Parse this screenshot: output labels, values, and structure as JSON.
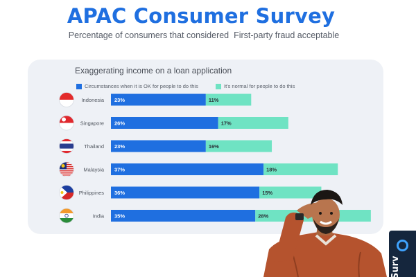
{
  "header": {
    "title": "APAC Consumer Survey",
    "subtitle": "Percentage of consumers that considered  First-party fraud acceptable"
  },
  "colors": {
    "blue": "#1f6fe0",
    "mint": "#6fe3c3",
    "title": "#1f6fe0"
  },
  "side_tab": {
    "icon": "circle-logo-icon",
    "text": "Surv"
  },
  "chart_data": {
    "type": "bar",
    "title": "Exaggerating income on a loan application",
    "legend_position": "top",
    "categories": [
      "Indonesia",
      "Singapore",
      "Thailand",
      "Malaysia",
      "Philippines",
      "India"
    ],
    "flags": [
      "indonesia-flag-icon",
      "singapore-flag-icon",
      "thailand-flag-icon",
      "malaysia-flag-icon",
      "philippines-flag-icon",
      "india-flag-icon"
    ],
    "stacked": true,
    "series": [
      {
        "name": "Circumstances when it is OK for people to do this",
        "values": [
          23,
          26,
          23,
          37,
          36,
          35
        ],
        "labels": [
          "23%",
          "26%",
          "23%",
          "37%",
          "36%",
          "35%"
        ]
      },
      {
        "name": "It's normal for people to do this",
        "values": [
          11,
          17,
          16,
          18,
          15,
          28
        ],
        "labels": [
          "11%",
          "17%",
          "16%",
          "18%",
          "15%",
          "28%"
        ]
      }
    ]
  }
}
